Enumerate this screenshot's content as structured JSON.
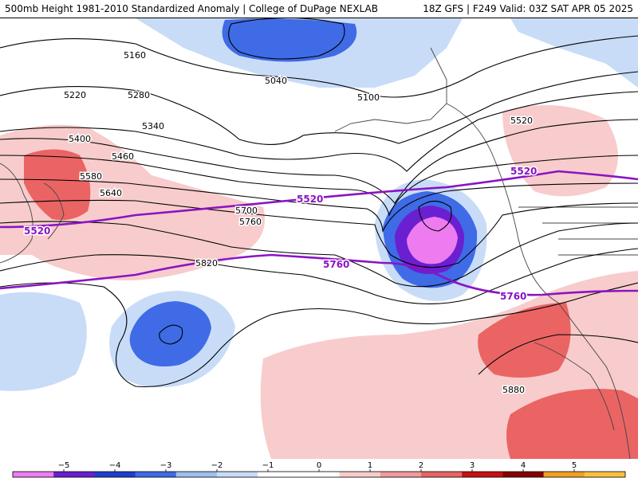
{
  "header": {
    "left_title": "500mb Height 1981-2010 Standardized Anomaly | College of DuPage NEXLAB",
    "right_title": "18Z GFS | F249 Valid: 03Z SAT APR 05 2025"
  },
  "colors": {
    "neg1": "#c8dcf8",
    "neg2": "#9ebfef",
    "neg3": "#3f6be6",
    "neg4": "#6a1fd0",
    "neg5": "#ee7cf0",
    "pos1": "#f8cccc",
    "pos2": "#f19a9a",
    "pos3": "#ea6464",
    "contour": "#000000",
    "thick_contour": "#8a14c4",
    "coast": "#444444"
  },
  "contour_labels": [
    "5160",
    "5220",
    "5280",
    "5340",
    "5400",
    "5460",
    "5580",
    "5640",
    "5700",
    "5760",
    "5820",
    "5880",
    "5040",
    "5100",
    "5520"
  ],
  "thick_labels": [
    "5520",
    "5520",
    "5520",
    "5760",
    "5760"
  ],
  "colorbar": {
    "ticks": [
      "−5",
      "−4",
      "−3",
      "−2",
      "−1",
      "0",
      "1",
      "2",
      "3",
      "4",
      "5"
    ],
    "colors": [
      "#ee7cf0",
      "#6a1fd0",
      "#1f3fd0",
      "#3f6be6",
      "#9ebfef",
      "#c8dcf8",
      "#ffffff",
      "#ffffff",
      "#f8cccc",
      "#f19a9a",
      "#ea6464",
      "#c81010",
      "#8a0000",
      "#f0a020",
      "#f8c040"
    ]
  }
}
